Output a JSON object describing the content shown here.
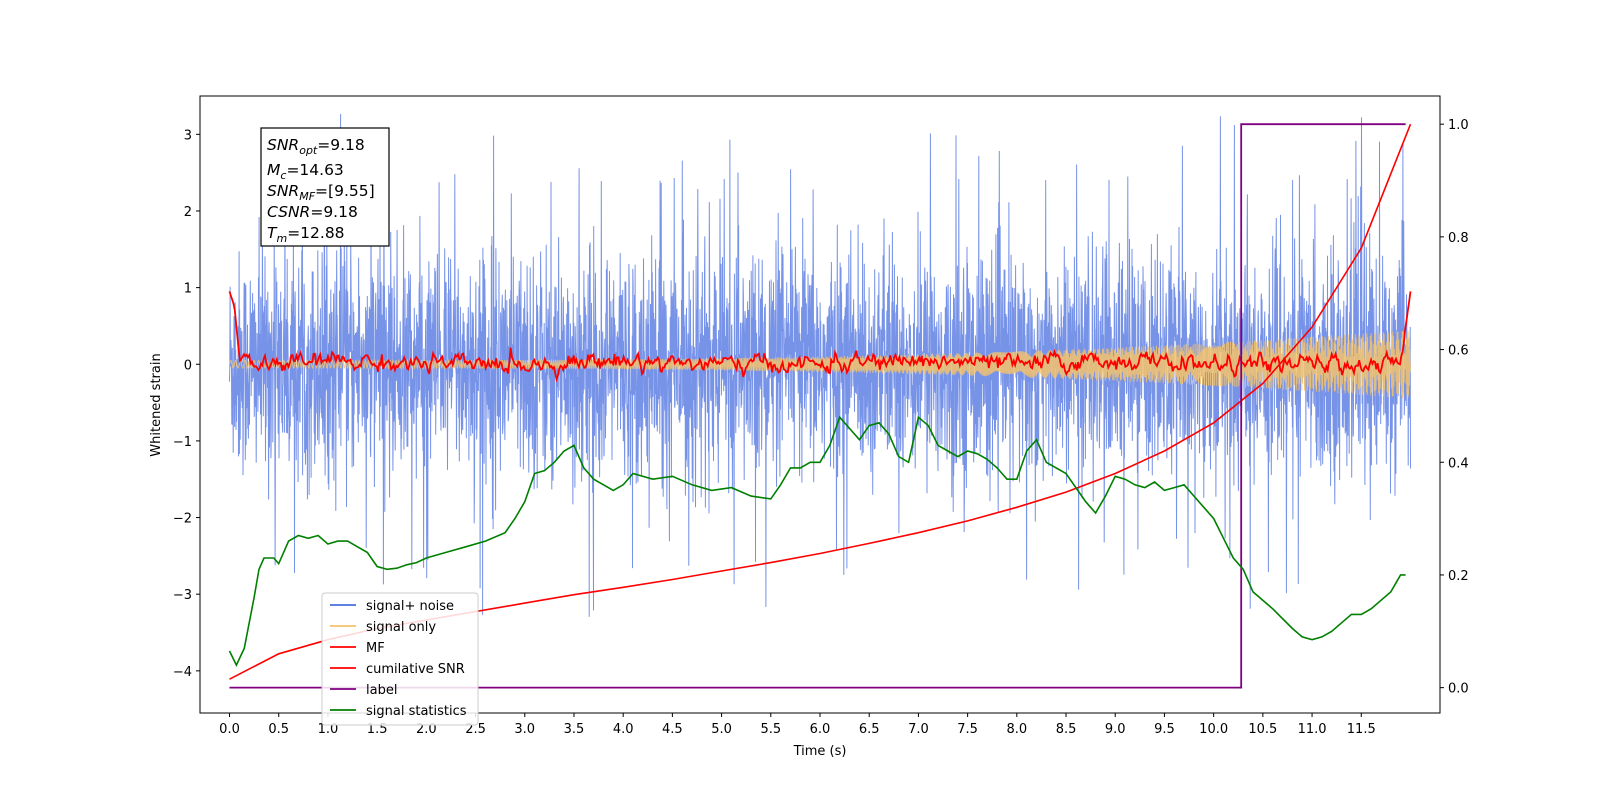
{
  "chart_data": {
    "type": "line",
    "title": "",
    "xlabel": "Time (s)",
    "ylabel": "Whitened strain",
    "ylabel_right": "",
    "xlim": [
      -0.3,
      12.3
    ],
    "ylim": [
      -4.55,
      3.5
    ],
    "ylim_right": [
      -0.045,
      1.05
    ],
    "grid": false,
    "legend_position": "lower-left",
    "x_ticks": [
      0.0,
      0.5,
      1.0,
      1.5,
      2.0,
      2.5,
      3.0,
      3.5,
      4.0,
      4.5,
      5.0,
      5.5,
      6.0,
      6.5,
      7.0,
      7.5,
      8.0,
      8.5,
      9.0,
      9.5,
      10.0,
      10.5,
      11.0,
      11.5
    ],
    "x_tick_labels": [
      "0.0",
      "0.5",
      "1.0",
      "1.5",
      "2.0",
      "2.5",
      "3.0",
      "3.5",
      "4.0",
      "4.5",
      "5.0",
      "5.5",
      "6.0",
      "6.5",
      "7.0",
      "7.5",
      "8.0",
      "8.5",
      "9.0",
      "9.5",
      "10.0",
      "10.5",
      "11.0",
      "11.5"
    ],
    "y_ticks": [
      -4,
      -3,
      -2,
      -1,
      0,
      1,
      2,
      3
    ],
    "y_tick_labels": [
      "−4",
      "−3",
      "−2",
      "−1",
      "0",
      "1",
      "2",
      "3"
    ],
    "y_ticks_right": [
      0.0,
      0.2,
      0.4,
      0.6,
      0.8,
      1.0
    ],
    "y_tick_labels_right": [
      "0.0",
      "0.2",
      "0.4",
      "0.6",
      "0.8",
      "1.0"
    ],
    "info_box": {
      "snr_opt": {
        "main": "SNR",
        "sub": "opt",
        "value": "=9.18"
      },
      "mc": {
        "main": "M",
        "sub": "c",
        "value": "=14.63"
      },
      "snr_mf": {
        "main": "SNR",
        "sub": "MF",
        "value": "=[9.55]"
      },
      "csnr": {
        "main": "CSNR",
        "value": "=9.18"
      },
      "tm": {
        "main": "T",
        "sub": "m",
        "value": "=12.88"
      }
    },
    "series": [
      {
        "name": "signal+ noise",
        "color": "#4a6fe0",
        "axis": "left",
        "description": "noisy whitened strain, roughly uniform amplitude band between -2 and 2 with spikes",
        "x_range": [
          0.0,
          12.0
        ],
        "envelope_approx": {
          "typical_min": -1.6,
          "typical_max": 1.6,
          "min": -4.1,
          "max": 3.3
        }
      },
      {
        "name": "signal only",
        "color": "#f5c36b",
        "axis": "left",
        "description": "chirp signal, amplitude growing from ~0.05 to ~0.45 near t=12",
        "x_range": [
          0.0,
          12.0
        ],
        "amplitude_start": 0.05,
        "amplitude_end": 0.45
      },
      {
        "name": "MF",
        "color": "#ff0000",
        "axis": "left",
        "description": "matched filter output fluctuating around 0",
        "x": [
          0.0,
          0.05,
          0.1,
          0.2,
          0.5,
          1.0,
          2.0,
          3.0,
          4.0,
          5.0,
          6.0,
          7.0,
          8.0,
          9.0,
          10.0,
          11.0,
          11.9,
          12.0
        ],
        "y": [
          0.95,
          0.75,
          0.1,
          0.0,
          0.0,
          0.05,
          0.0,
          0.0,
          0.05,
          0.0,
          0.0,
          0.05,
          0.0,
          0.05,
          0.0,
          0.0,
          0.0,
          0.95
        ]
      },
      {
        "name": "cumilative SNR",
        "color": "#ff0000",
        "axis": "right",
        "x": [
          0.0,
          0.5,
          1.0,
          1.5,
          2.0,
          2.5,
          3.0,
          3.5,
          4.0,
          4.5,
          5.0,
          5.5,
          6.0,
          6.5,
          7.0,
          7.5,
          8.0,
          8.5,
          9.0,
          9.5,
          10.0,
          10.5,
          11.0,
          11.5,
          12.0
        ],
        "y": [
          0.015,
          0.06,
          0.085,
          0.105,
          0.12,
          0.135,
          0.15,
          0.165,
          0.178,
          0.192,
          0.207,
          0.222,
          0.238,
          0.256,
          0.275,
          0.296,
          0.32,
          0.347,
          0.38,
          0.42,
          0.47,
          0.54,
          0.64,
          0.78,
          1.0
        ]
      },
      {
        "name": "label",
        "color": "#800080",
        "axis": "right",
        "x": [
          0.0,
          10.28,
          10.28,
          11.95
        ],
        "y": [
          0.0,
          0.0,
          1.0,
          1.0
        ]
      },
      {
        "name": "signal statistics",
        "color": "#008000",
        "axis": "right",
        "x": [
          0.0,
          0.07,
          0.15,
          0.25,
          0.3,
          0.35,
          0.45,
          0.5,
          0.6,
          0.7,
          0.8,
          0.9,
          1.0,
          1.1,
          1.2,
          1.3,
          1.4,
          1.5,
          1.6,
          1.7,
          1.8,
          1.9,
          2.0,
          2.2,
          2.4,
          2.6,
          2.8,
          2.9,
          3.0,
          3.1,
          3.2,
          3.3,
          3.4,
          3.5,
          3.6,
          3.7,
          3.8,
          3.9,
          4.0,
          4.1,
          4.3,
          4.5,
          4.7,
          4.9,
          5.1,
          5.3,
          5.5,
          5.6,
          5.7,
          5.8,
          5.9,
          6.0,
          6.1,
          6.2,
          6.3,
          6.4,
          6.5,
          6.6,
          6.7,
          6.8,
          6.9,
          7.0,
          7.1,
          7.2,
          7.3,
          7.4,
          7.5,
          7.6,
          7.7,
          7.8,
          7.9,
          8.0,
          8.1,
          8.2,
          8.3,
          8.5,
          8.7,
          8.8,
          8.9,
          9.0,
          9.1,
          9.2,
          9.3,
          9.4,
          9.5,
          9.6,
          9.7,
          9.8,
          9.9,
          10.0,
          10.1,
          10.2,
          10.3,
          10.4,
          10.6,
          10.8,
          10.9,
          11.0,
          11.1,
          11.2,
          11.3,
          11.4,
          11.5,
          11.6,
          11.7,
          11.8,
          11.9,
          11.95
        ],
        "y": [
          0.065,
          0.04,
          0.07,
          0.16,
          0.21,
          0.23,
          0.23,
          0.22,
          0.26,
          0.27,
          0.265,
          0.27,
          0.255,
          0.26,
          0.26,
          0.25,
          0.24,
          0.215,
          0.21,
          0.212,
          0.218,
          0.222,
          0.23,
          0.24,
          0.25,
          0.26,
          0.275,
          0.3,
          0.33,
          0.38,
          0.385,
          0.4,
          0.42,
          0.43,
          0.39,
          0.37,
          0.36,
          0.35,
          0.36,
          0.38,
          0.37,
          0.375,
          0.36,
          0.35,
          0.355,
          0.34,
          0.335,
          0.36,
          0.39,
          0.39,
          0.4,
          0.4,
          0.43,
          0.48,
          0.46,
          0.44,
          0.465,
          0.47,
          0.45,
          0.41,
          0.4,
          0.48,
          0.465,
          0.43,
          0.42,
          0.41,
          0.42,
          0.415,
          0.405,
          0.39,
          0.37,
          0.37,
          0.42,
          0.44,
          0.4,
          0.38,
          0.33,
          0.31,
          0.34,
          0.375,
          0.37,
          0.36,
          0.355,
          0.365,
          0.35,
          0.355,
          0.36,
          0.34,
          0.32,
          0.3,
          0.265,
          0.23,
          0.21,
          0.17,
          0.14,
          0.105,
          0.09,
          0.085,
          0.09,
          0.1,
          0.115,
          0.13,
          0.13,
          0.14,
          0.155,
          0.17,
          0.2,
          0.2
        ]
      }
    ]
  }
}
